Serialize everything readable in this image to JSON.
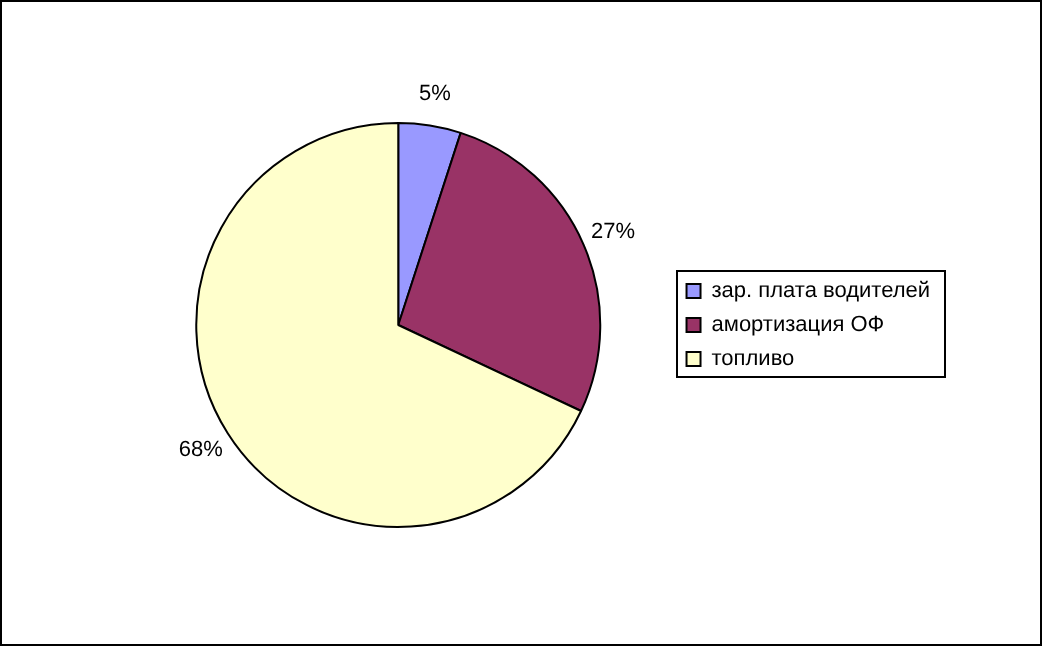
{
  "chart_data": {
    "type": "pie",
    "categories": [
      "зар. плата водителей",
      "амортизация ОФ",
      "топливо"
    ],
    "values": [
      5,
      27,
      68
    ],
    "colors": [
      "#9999ff",
      "#993366",
      "#ffffcc"
    ],
    "value_labels": [
      "5%",
      "27%",
      "68%"
    ],
    "legend": "right"
  }
}
